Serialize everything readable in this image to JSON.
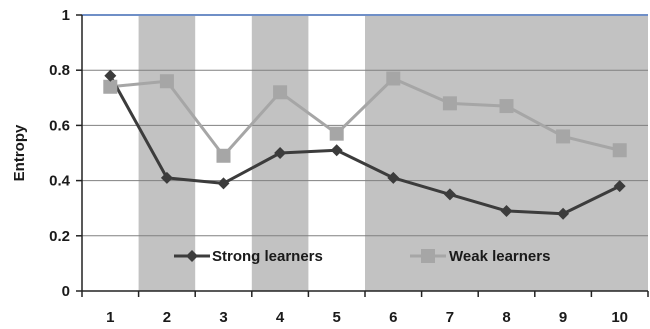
{
  "chart_data": {
    "type": "line",
    "title": "",
    "xlabel": "",
    "ylabel": "Entropy",
    "x": [
      1,
      2,
      3,
      4,
      5,
      6,
      7,
      8,
      9,
      10
    ],
    "x_tick_labels": [
      "1",
      "2",
      "3",
      "4",
      "5",
      "6",
      "7",
      "8",
      "9",
      "10"
    ],
    "ylim": [
      0,
      1
    ],
    "y_ticks": [
      0,
      0.2,
      0.4,
      0.6,
      0.8,
      1
    ],
    "y_tick_labels": [
      "0",
      "0.2",
      "0.4",
      "0.6",
      "0.8",
      "1"
    ],
    "grid": "horizontal",
    "shaded_x_ranges": [
      [
        2,
        2
      ],
      [
        4,
        4
      ],
      [
        6,
        10
      ]
    ],
    "legend_position": "bottom-inside",
    "series": [
      {
        "name": "Strong learners",
        "marker": "diamond",
        "color": "#3c3c3c",
        "values": [
          0.78,
          0.41,
          0.39,
          0.5,
          0.51,
          0.41,
          0.35,
          0.29,
          0.28,
          0.38
        ]
      },
      {
        "name": "Weak learners",
        "marker": "square",
        "color": "#a6a6a6",
        "values": [
          0.74,
          0.76,
          0.49,
          0.72,
          0.57,
          0.77,
          0.68,
          0.67,
          0.56,
          0.51
        ]
      }
    ],
    "colors": {
      "shade": "#c2c2c2",
      "grid": "#808080",
      "top_border": "#6f8fc7",
      "axis": "#222222"
    }
  }
}
